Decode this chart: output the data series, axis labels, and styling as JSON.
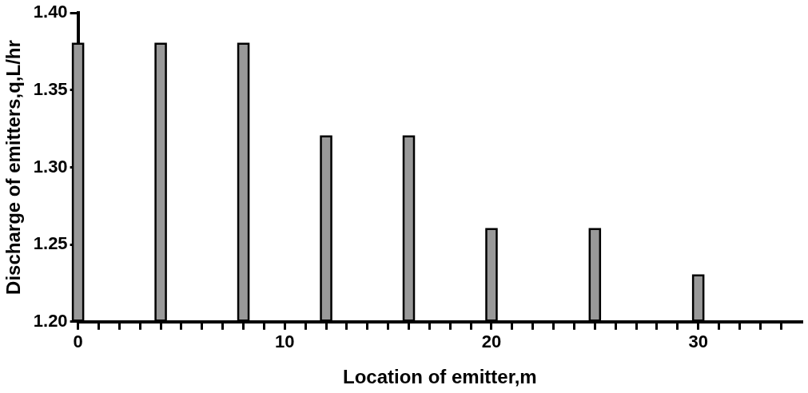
{
  "chart_data": {
    "type": "bar",
    "xlabel": "Location of emitter,m",
    "ylabel": "Discharge of emitters,q,L/hr",
    "x": [
      0,
      4,
      8,
      12,
      16,
      20,
      25,
      30
    ],
    "values": [
      1.38,
      1.38,
      1.38,
      1.32,
      1.32,
      1.26,
      1.26,
      1.23
    ],
    "color": "#999999",
    "xlim": [
      0,
      35
    ],
    "xticks": [
      0,
      {
        "value": 1,
        "label": null
      },
      {
        "value": 2,
        "label": null
      },
      {
        "value": 3,
        "label": null
      },
      {
        "value": 4,
        "label": null
      },
      {
        "value": 5,
        "label": null
      },
      {
        "value": 6,
        "label": null
      },
      {
        "value": 7,
        "label": null
      },
      {
        "value": 8,
        "label": null
      },
      {
        "value": 9,
        "label": null
      },
      10,
      {
        "value": 11,
        "label": null
      },
      {
        "value": 12,
        "label": null
      },
      {
        "value": 13,
        "label": null
      },
      {
        "value": 14,
        "label": null
      },
      {
        "value": 15,
        "label": null
      },
      {
        "value": 16,
        "label": null
      },
      {
        "value": 17,
        "label": null
      },
      {
        "value": 18,
        "label": null
      },
      {
        "value": 19,
        "label": null
      },
      20,
      {
        "value": 21,
        "label": null
      },
      {
        "value": 22,
        "label": null
      },
      {
        "value": 23,
        "label": null
      },
      {
        "value": 24,
        "label": null
      },
      {
        "value": 25,
        "label": null
      },
      {
        "value": 26,
        "label": null
      },
      {
        "value": 27,
        "label": null
      },
      {
        "value": 28,
        "label": null
      },
      {
        "value": 29,
        "label": null
      },
      30,
      {
        "value": 31,
        "label": null
      },
      {
        "value": 32,
        "label": null
      },
      {
        "value": 33,
        "label": null
      },
      {
        "value": 34,
        "label": null
      }
    ],
    "ylim": [
      1.2,
      1.4
    ],
    "yticks": [
      {
        "value": 1.2,
        "label": "1.20"
      },
      {
        "value": 1.25,
        "label": "1.25"
      },
      {
        "value": 1.3,
        "label": "1.30"
      },
      {
        "value": 1.35,
        "label": "1.35"
      },
      {
        "value": 1.4,
        "label": "1.40"
      }
    ],
    "grid": false,
    "legend": false
  }
}
